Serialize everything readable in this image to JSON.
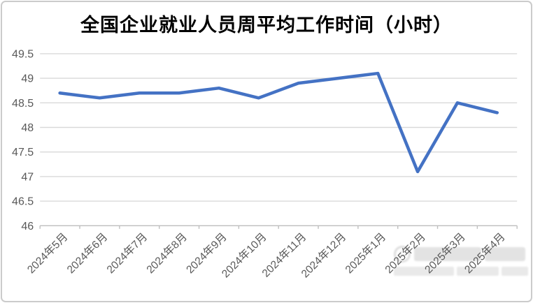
{
  "chart_data": {
    "type": "line",
    "title": "全国企业就业人员周平均工作时间（小时）",
    "xlabel": "",
    "ylabel": "",
    "categories": [
      "2024年5月",
      "2024年6月",
      "2024年7月",
      "2024年8月",
      "2024年9月",
      "2024年10月",
      "2024年11月",
      "2024年12月",
      "2025年1月",
      "2025年2月",
      "2025年3月",
      "2025年4月"
    ],
    "values": [
      48.7,
      48.6,
      48.7,
      48.7,
      48.8,
      48.6,
      48.9,
      49.0,
      49.1,
      47.1,
      48.5,
      48.3
    ],
    "ylim": [
      46,
      49.5
    ],
    "yticks": [
      49.5,
      49,
      48.5,
      48,
      47.5,
      47,
      46.5,
      46
    ],
    "grid": true,
    "legend": false,
    "colors": {
      "line": "#4472C4",
      "gridline": "#D9D9D9",
      "axis": "#BFBFBF",
      "tick_label": "#595959",
      "title": "#000000"
    }
  }
}
